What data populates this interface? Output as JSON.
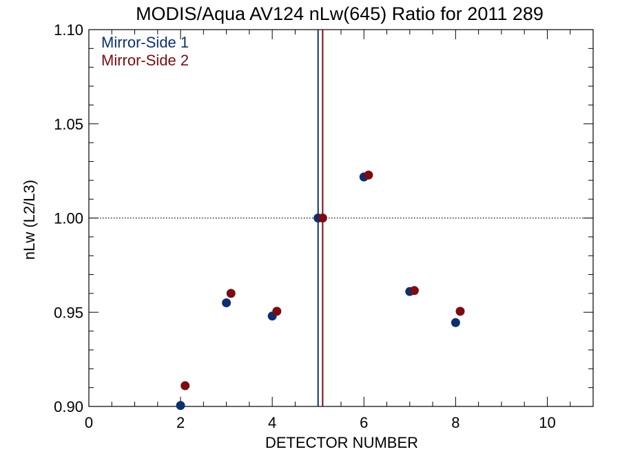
{
  "chart_data": {
    "type": "scatter",
    "title": "MODIS/Aqua AV124 nLw(645) Ratio for 2011 289",
    "xlabel": "DETECTOR NUMBER",
    "ylabel": "nLw (L2/L3)",
    "xlim": [
      0,
      11
    ],
    "ylim": [
      0.9,
      1.1
    ],
    "x_ticks": [
      0,
      2,
      4,
      6,
      8,
      10
    ],
    "x_tick_labels": [
      "0",
      "2",
      "4",
      "6",
      "8",
      "10"
    ],
    "y_ticks": [
      0.9,
      0.95,
      1.0,
      1.05,
      1.1
    ],
    "y_tick_labels": [
      "0.90",
      "0.95",
      "1.00",
      "1.05",
      "1.10"
    ],
    "reference_line_y": 1.0,
    "legend_position": "top-left",
    "grid": false,
    "series": [
      {
        "name": "Mirror-Side 1",
        "color": "#0d2f6e",
        "x": [
          2,
          3,
          4,
          5,
          6,
          7,
          8
        ],
        "y": [
          0.9005,
          0.955,
          0.948,
          1.0,
          1.0218,
          0.961,
          0.9445
        ],
        "vertical_line_x": 5.0
      },
      {
        "name": "Mirror-Side 2",
        "color": "#7a0c12",
        "x": [
          2.1,
          3.1,
          4.1,
          5.1,
          6.1,
          7.1,
          8.1
        ],
        "y": [
          0.911,
          0.96,
          0.9505,
          1.0,
          1.0228,
          0.9615,
          0.9505
        ],
        "vertical_line_x": 5.1
      }
    ]
  }
}
